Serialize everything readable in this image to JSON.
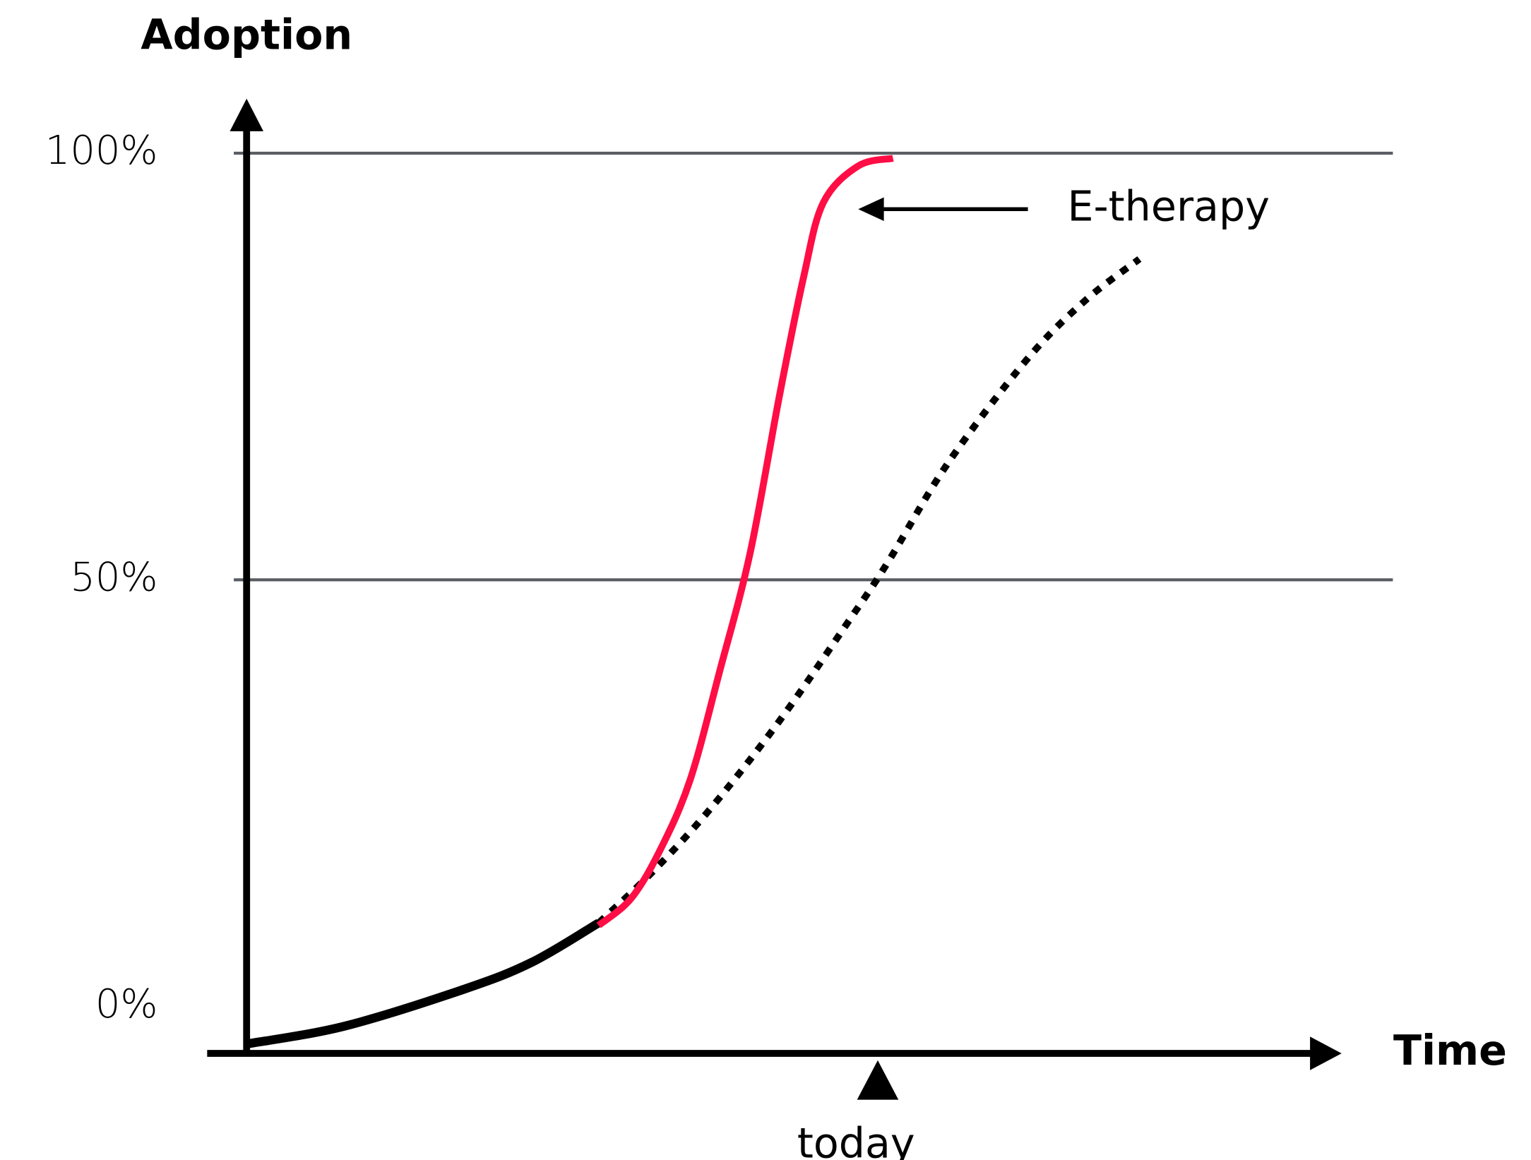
{
  "chart_data": {
    "type": "line",
    "y_axis_label": "Adoption",
    "x_axis_label": "Time",
    "xlim": [
      0,
      100
    ],
    "ylim": [
      -5.5,
      105
    ],
    "yticks": [
      {
        "value": 0,
        "label": "0%"
      },
      {
        "value": 50,
        "label": "50%"
      },
      {
        "value": 100,
        "label": "100%"
      }
    ],
    "gridlines": [
      50,
      100
    ],
    "series": [
      {
        "color": "#000000",
        "style": "solid",
        "x": [
          0,
          9,
          19.9,
          26.2,
          32.3
        ],
        "values": [
          -4.4,
          -2.3,
          2,
          5.2,
          9.8
        ]
      },
      {
        "color": "#000000",
        "style": "dotted",
        "x": [
          32.3,
          37.1,
          42.5,
          48.9,
          55.2,
          58.8,
          64.3,
          71.5,
          76.9,
          81.9
        ],
        "values": [
          9.8,
          15.6,
          23.1,
          33.5,
          45.1,
          52,
          63.6,
          75.7,
          82.7,
          87.6
        ]
      },
      {
        "name": "E-therapy",
        "color": "#ff0d45",
        "style": "solid",
        "x": [
          32.3,
          35.3,
          38,
          40.7,
          43.4,
          46.2,
          48.9,
          51.1,
          52.9,
          56.1,
          59.3
        ],
        "values": [
          9.5,
          12.7,
          18.5,
          26.6,
          39.3,
          53.2,
          71.7,
          85.5,
          94.2,
          98.5,
          99.4
        ]
      }
    ],
    "marker": {
      "text": "today",
      "x": 57.9
    }
  }
}
